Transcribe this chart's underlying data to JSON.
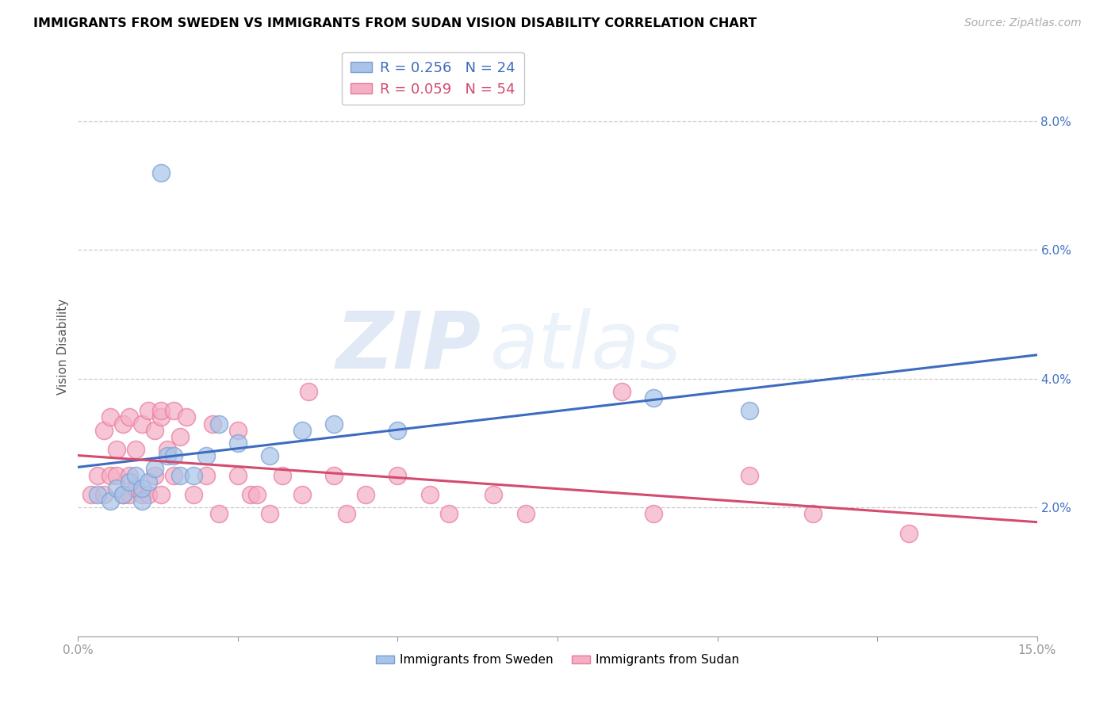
{
  "title": "IMMIGRANTS FROM SWEDEN VS IMMIGRANTS FROM SUDAN VISION DISABILITY CORRELATION CHART",
  "source": "Source: ZipAtlas.com",
  "ylabel": "Vision Disability",
  "xlim": [
    0.0,
    0.15
  ],
  "ylim": [
    0.0,
    0.09
  ],
  "yticks": [
    0.02,
    0.04,
    0.06,
    0.08
  ],
  "ytick_labels": [
    "2.0%",
    "4.0%",
    "6.0%",
    "8.0%"
  ],
  "xticks": [
    0.0,
    0.025,
    0.05,
    0.075,
    0.1,
    0.125,
    0.15
  ],
  "xtick_labels": [
    "0.0%",
    "",
    "",
    "",
    "",
    "",
    "15.0%"
  ],
  "sweden_color": "#a8c4e8",
  "sudan_color": "#f5afc5",
  "sweden_edge_color": "#7a9fd4",
  "sudan_edge_color": "#e87a9a",
  "sweden_line_color": "#3d6bbf",
  "sudan_line_color": "#d44b70",
  "sweden_R": 0.256,
  "sweden_N": 24,
  "sudan_R": 0.059,
  "sudan_N": 54,
  "watermark_ZIP": "ZIP",
  "watermark_atlas": "atlas",
  "sweden_x": [
    0.003,
    0.005,
    0.006,
    0.007,
    0.008,
    0.009,
    0.01,
    0.01,
    0.011,
    0.012,
    0.013,
    0.014,
    0.015,
    0.016,
    0.018,
    0.02,
    0.022,
    0.025,
    0.03,
    0.035,
    0.04,
    0.05,
    0.09,
    0.105
  ],
  "sweden_y": [
    0.022,
    0.021,
    0.023,
    0.022,
    0.024,
    0.025,
    0.021,
    0.023,
    0.024,
    0.026,
    0.072,
    0.028,
    0.028,
    0.025,
    0.025,
    0.028,
    0.033,
    0.03,
    0.028,
    0.032,
    0.033,
    0.032,
    0.037,
    0.035
  ],
  "sudan_x": [
    0.002,
    0.003,
    0.004,
    0.004,
    0.005,
    0.005,
    0.006,
    0.006,
    0.007,
    0.007,
    0.008,
    0.008,
    0.008,
    0.009,
    0.009,
    0.01,
    0.01,
    0.011,
    0.011,
    0.012,
    0.012,
    0.013,
    0.013,
    0.013,
    0.014,
    0.015,
    0.015,
    0.016,
    0.017,
    0.018,
    0.02,
    0.021,
    0.022,
    0.025,
    0.025,
    0.027,
    0.028,
    0.03,
    0.032,
    0.035,
    0.036,
    0.04,
    0.042,
    0.045,
    0.05,
    0.055,
    0.058,
    0.065,
    0.07,
    0.085,
    0.09,
    0.105,
    0.115,
    0.13
  ],
  "sudan_y": [
    0.022,
    0.025,
    0.022,
    0.032,
    0.025,
    0.034,
    0.025,
    0.029,
    0.022,
    0.033,
    0.025,
    0.022,
    0.034,
    0.023,
    0.029,
    0.022,
    0.033,
    0.022,
    0.035,
    0.025,
    0.032,
    0.022,
    0.034,
    0.035,
    0.029,
    0.025,
    0.035,
    0.031,
    0.034,
    0.022,
    0.025,
    0.033,
    0.019,
    0.025,
    0.032,
    0.022,
    0.022,
    0.019,
    0.025,
    0.022,
    0.038,
    0.025,
    0.019,
    0.022,
    0.025,
    0.022,
    0.019,
    0.022,
    0.019,
    0.038,
    0.019,
    0.025,
    0.019,
    0.016
  ],
  "title_fontsize": 11.5,
  "axis_label_fontsize": 11,
  "tick_fontsize": 11,
  "legend_fontsize": 13,
  "source_fontsize": 10
}
